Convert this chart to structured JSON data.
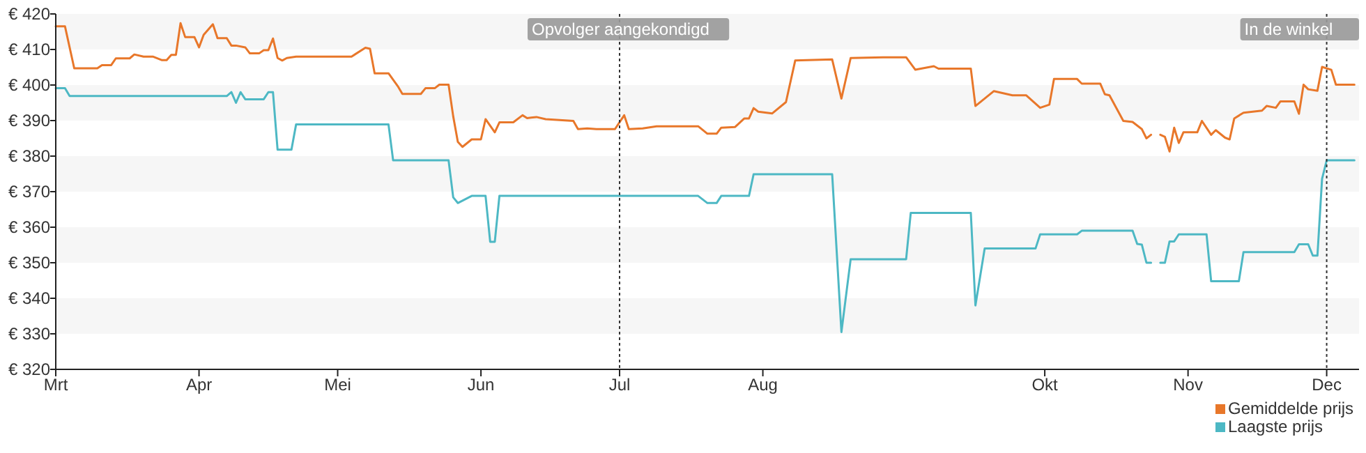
{
  "chart_data": {
    "type": "line",
    "xlim": [
      "--03-01",
      "--12-08"
    ],
    "xticks": [
      {
        "value": "--03-01",
        "label": "Mrt"
      },
      {
        "value": "--04-01",
        "label": "Apr"
      },
      {
        "value": "--05-01",
        "label": "Mei"
      },
      {
        "value": "--06-01",
        "label": "Jun"
      },
      {
        "value": "--07-01",
        "label": "Jul"
      },
      {
        "value": "--08-01",
        "label": "Aug"
      },
      {
        "value": "--10-01",
        "label": "Okt"
      },
      {
        "value": "--11-01",
        "label": "Nov"
      },
      {
        "value": "--12-01",
        "label": "Dec"
      }
    ],
    "ylim": [
      320,
      420
    ],
    "yticks": [
      {
        "value": 320,
        "label": "€ 320"
      },
      {
        "value": 330,
        "label": "€ 330"
      },
      {
        "value": 340,
        "label": "€ 340"
      },
      {
        "value": 350,
        "label": "€ 350"
      },
      {
        "value": 360,
        "label": "€ 360"
      },
      {
        "value": 370,
        "label": "€ 370"
      },
      {
        "value": 380,
        "label": "€ 380"
      },
      {
        "value": 390,
        "label": "€ 390"
      },
      {
        "value": 400,
        "label": "€ 400"
      },
      {
        "value": 410,
        "label": "€ 410"
      },
      {
        "value": 420,
        "label": "€ 420"
      }
    ],
    "legend": "bottom right",
    "line_style": "solid",
    "ref_lines": [
      {
        "axis": "x",
        "value": "--07-01",
        "label": "Opvolger aangekondigd",
        "line_style": "dotted",
        "color": "#333333"
      },
      {
        "axis": "x",
        "value": "--12-01",
        "label": "In de winkel",
        "line_style": "dotted",
        "color": "#333333"
      }
    ],
    "series": [
      {
        "name": "Gemiddelde prijs",
        "color": "#e8772a",
        "x": [
          "--03-01",
          "--03-03",
          "--03-05",
          "--03-10",
          "--03-11",
          "--03-13",
          "--03-14",
          "--03-17",
          "--03-18",
          "--03-20",
          "--03-22",
          "--03-24",
          "--03-25",
          "--03-26",
          "--03-27",
          "--03-28",
          "--03-29",
          "--03-31",
          "--04-01",
          "--04-02",
          "--04-04",
          "--04-05",
          "--04-07",
          "--04-08",
          "--04-09",
          "--04-11",
          "--04-12",
          "--04-14",
          "--04-15",
          "--04-16",
          "--04-17",
          "--04-18",
          "--04-19",
          "--04-20",
          "--04-22",
          "--05-04",
          "--05-07",
          "--05-08",
          "--05-09",
          "--05-12",
          "--05-14",
          "--05-15",
          "--05-19",
          "--05-20",
          "--05-22",
          "--05-23",
          "--05-25",
          "--05-26",
          "--05-27",
          "--05-28",
          "--05-30",
          "--06-01",
          "--06-02",
          "--06-04",
          "--06-05",
          "--06-08",
          "--06-10",
          "--06-11",
          "--06-13",
          "--06-15",
          "--06-21",
          "--06-22",
          "--06-24",
          "--06-26",
          "--06-30",
          "--07-02",
          "--07-03",
          "--07-06",
          "--07-09",
          "--07-18",
          "--07-20",
          "--07-22",
          "--07-23",
          "--07-26",
          "--07-28",
          "--07-29",
          "--07-30",
          "--07-31",
          "--08-03",
          "--08-06",
          "--08-08",
          "--08-16",
          "--08-18",
          "--08-20",
          "--08-27",
          "--09-01",
          "--09-03",
          "--09-07",
          "--09-08",
          "--09-15",
          "--09-16",
          "--09-20",
          "--09-24",
          "--09-27",
          "--09-30",
          "--10-02",
          "--10-03",
          "--10-08",
          "--10-09",
          "--10-13",
          "--10-14",
          "--10-15",
          "--10-18",
          "--10-20",
          "--10-22",
          "--10-23",
          "--10-24",
          "--10-25",
          "--10-26",
          "--10-27",
          "--10-28",
          "--10-29",
          "--10-30",
          "--10-31",
          "--11-03",
          "--11-04",
          "--11-06",
          "--11-07",
          "--11-09",
          "--11-10",
          "--11-11",
          "--11-13",
          "--11-15",
          "--11-17",
          "--11-18",
          "--11-20",
          "--11-21",
          "--11-24",
          "--11-25",
          "--11-26",
          "--11-27",
          "--11-29",
          "--11-30",
          "--12-02",
          "--12-03",
          "--12-07"
        ],
        "values": [
          416.5,
          416.5,
          404.7,
          404.7,
          405.6,
          405.6,
          407.5,
          407.5,
          408.6,
          408,
          408,
          407,
          407,
          408.5,
          408.5,
          417.4,
          413.5,
          413.5,
          410.6,
          414.1,
          417.1,
          413.2,
          413.2,
          411.1,
          411.1,
          410.6,
          408.9,
          408.9,
          409.8,
          409.8,
          413.1,
          407.6,
          406.9,
          407.6,
          408,
          408,
          410.5,
          410.2,
          403.3,
          403.3,
          399.7,
          397.5,
          397.5,
          399.1,
          399.1,
          400.1,
          400.1,
          391.2,
          384,
          382.6,
          384.7,
          384.7,
          390.4,
          386.7,
          389.5,
          389.5,
          391.5,
          390.7,
          391,
          390.4,
          389.9,
          387.6,
          387.8,
          387.6,
          387.6,
          391.5,
          387.6,
          387.8,
          388.4,
          388.4,
          386.3,
          386.3,
          388,
          388.2,
          390.6,
          390.6,
          393.5,
          392.5,
          392,
          395.2,
          406.9,
          407.2,
          396.2,
          407.6,
          407.8,
          407.8,
          404.3,
          405.3,
          404.6,
          404.6,
          394.1,
          398.3,
          397.1,
          397.1,
          393.6,
          394.5,
          401.7,
          401.7,
          400.4,
          400.4,
          397.4,
          397.1,
          389.9,
          389.6,
          387.6,
          385,
          386,
          null,
          386,
          385.4,
          381.3,
          388,
          383.7,
          386.7,
          386.7,
          389.9,
          386,
          387.3,
          385.2,
          384.7,
          390.6,
          392.2,
          392.5,
          392.8,
          394.1,
          393.6,
          395.4,
          395.4,
          391.9,
          400.1,
          398.8,
          398.4,
          405.1,
          404.3,
          400.1,
          400.1
        ]
      },
      {
        "name": "Laagste prijs",
        "color": "#4db8c4",
        "x": [
          "--03-01",
          "--03-03",
          "--03-04",
          "--04-07",
          "--04-08",
          "--04-09",
          "--04-10",
          "--04-11",
          "--04-15",
          "--04-16",
          "--04-17",
          "--04-18",
          "--04-21",
          "--04-22",
          "--05-12",
          "--05-13",
          "--05-25",
          "--05-26",
          "--05-27",
          "--05-30",
          "--06-02",
          "--06-03",
          "--06-04",
          "--06-05",
          "--07-18",
          "--07-20",
          "--07-22",
          "--07-23",
          "--07-29",
          "--07-30",
          "--08-16",
          "--08-18",
          "--08-20",
          "--09-01",
          "--09-02",
          "--09-15",
          "--09-16",
          "--09-18",
          "--09-29",
          "--09-30",
          "--10-08",
          "--10-09",
          "--10-20",
          "--10-21",
          "--10-22",
          "--10-23",
          "--10-24",
          "--10-25",
          "--10-26",
          "--10-27",
          "--10-28",
          "--10-29",
          "--10-30",
          "--11-05",
          "--11-06",
          "--11-12",
          "--11-13",
          "--11-24",
          "--11-25",
          "--11-27",
          "--11-28",
          "--11-29",
          "--11-30",
          "--12-01",
          "--12-07"
        ],
        "values": [
          399.1,
          399.1,
          396.9,
          396.9,
          398,
          395,
          398,
          396,
          396,
          398,
          398,
          381.8,
          381.8,
          388.9,
          388.9,
          378.8,
          378.8,
          368.4,
          366.8,
          368.8,
          368.8,
          355.9,
          355.9,
          368.8,
          368.8,
          366.8,
          366.8,
          368.8,
          368.8,
          374.9,
          374.9,
          330.5,
          351,
          351,
          364,
          364,
          338,
          354,
          354,
          358,
          358,
          359,
          359,
          355.3,
          355.1,
          350,
          350,
          null,
          350,
          350,
          356,
          356,
          358,
          358,
          344.8,
          344.8,
          353,
          353,
          355.2,
          355.2,
          352,
          352,
          373.6,
          378.8,
          378.8
        ]
      }
    ]
  }
}
